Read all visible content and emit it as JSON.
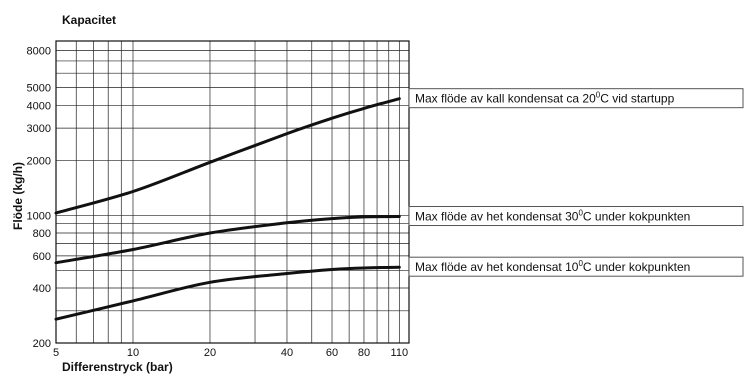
{
  "chart_data": {
    "type": "line",
    "title": "Kapacitet",
    "xlabel": "Differenstryck (bar)",
    "ylabel": "Flöde (kg/h)",
    "x_scale": "log",
    "y_scale": "log",
    "xlim": [
      5,
      120
    ],
    "ylim": [
      200,
      9000
    ],
    "grid": true,
    "x_tick_labels": [
      "5",
      "10",
      "20",
      "40",
      "60",
      "80",
      "110"
    ],
    "y_tick_labels": [
      "200",
      "400",
      "600",
      "800",
      "1000",
      "2000",
      "3000",
      "4000",
      "5000",
      "8000"
    ],
    "series": [
      {
        "name": "Max flöde av kall kondensat ca 20°C vid startupp",
        "label_main": "Max flöde av kall kondensat ca 20",
        "label_sup": "0",
        "label_end": "C vid startupp",
        "x": [
          5,
          10,
          20,
          40,
          60,
          80,
          110
        ],
        "y": [
          1030,
          1350,
          1950,
          2800,
          3400,
          3850,
          4350
        ]
      },
      {
        "name": "Max flöde av het kondensat 30°C under kokpunkten",
        "label_main": "Max flöde av het kondensat 30",
        "label_sup": "0",
        "label_end": "C under kokpunkten",
        "x": [
          5,
          10,
          20,
          40,
          60,
          80,
          110
        ],
        "y": [
          550,
          650,
          800,
          910,
          960,
          980,
          985
        ]
      },
      {
        "name": "Max flöde av het kondensat 10°C under kokpunkten",
        "label_main": "Max flöde av het kondensat 10",
        "label_sup": "0",
        "label_end": "C under kokpunkten",
        "x": [
          5,
          10,
          20,
          40,
          60,
          80,
          110
        ],
        "y": [
          270,
          340,
          430,
          480,
          505,
          515,
          520
        ]
      }
    ]
  }
}
